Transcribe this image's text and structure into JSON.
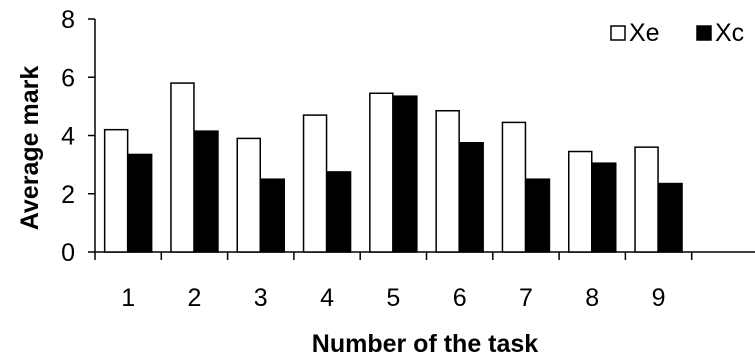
{
  "chart_data": {
    "type": "bar",
    "xlabel": "Number of the task",
    "ylabel": "Average mark",
    "categories": [
      "1",
      "2",
      "3",
      "4",
      "5",
      "6",
      "7",
      "8",
      "9"
    ],
    "ylim": [
      0,
      8
    ],
    "yticks": [
      0,
      2,
      4,
      6,
      8
    ],
    "grid": false,
    "legend_position": "top-right",
    "series": [
      {
        "name": "Xe",
        "color": "#ffffff",
        "values": [
          4.2,
          5.8,
          3.9,
          4.7,
          5.45,
          4.85,
          4.45,
          3.45,
          3.6
        ]
      },
      {
        "name": "Xc",
        "color": "#000000",
        "values": [
          3.35,
          4.15,
          2.5,
          2.75,
          5.35,
          3.75,
          2.5,
          3.05,
          2.35
        ]
      }
    ]
  }
}
